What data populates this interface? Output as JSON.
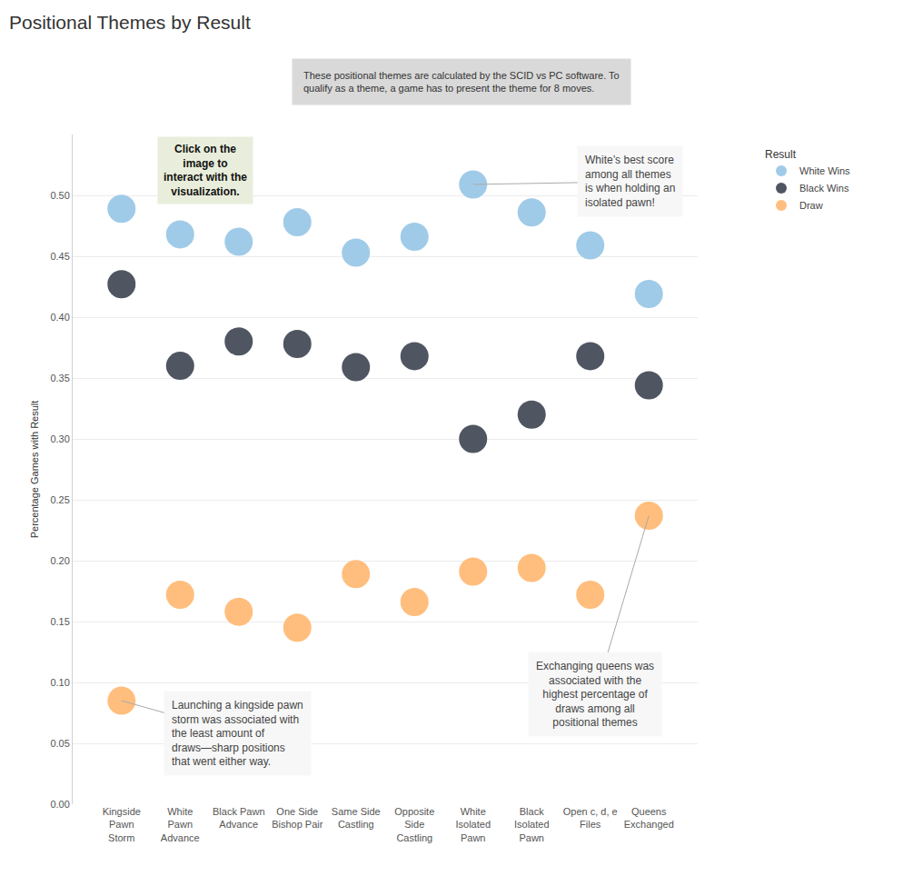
{
  "chart_data": {
    "type": "scatter",
    "title": "Positional Themes by Result",
    "subtitle": "These positional themes are calculated by the SCID vs PC software. To\nqualify as a theme, a game has to present the theme for 8 moves.",
    "ylabel": "Percentage Games with Result",
    "categories": [
      "Kingside\nPawn\nStorm",
      "White\nPawn\nAdvance",
      "Black Pawn\nAdvance",
      "One Side\nBishop Pair",
      "Same Side\nCastling",
      "Opposite\nSide\nCastling",
      "White\nIsolated\nPawn",
      "Black\nIsolated\nPawn",
      "Open c, d, e\nFiles",
      "Queens\nExchanged"
    ],
    "series": [
      {
        "name": "White Wins",
        "color": "#a0cbe8",
        "values": [
          0.489,
          0.468,
          0.462,
          0.478,
          0.453,
          0.466,
          0.509,
          0.486,
          0.459,
          0.419
        ]
      },
      {
        "name": "Black Wins",
        "color": "#4f5662",
        "values": [
          0.427,
          0.36,
          0.38,
          0.378,
          0.359,
          0.368,
          0.3,
          0.32,
          0.368,
          0.344
        ]
      },
      {
        "name": "Draw",
        "color": "#ffbe7d",
        "values": [
          0.085,
          0.172,
          0.158,
          0.145,
          0.189,
          0.166,
          0.191,
          0.194,
          0.172,
          0.237
        ]
      }
    ],
    "ylim": [
      0,
      0.55
    ],
    "yticks": [
      {
        "value": 0,
        "label": "0.00"
      },
      0.05,
      {
        "value": 0.1,
        "label": "0.10"
      },
      0.15,
      {
        "value": 0.2,
        "label": "0.20"
      },
      0.25,
      {
        "value": 0.3,
        "label": "0.30"
      },
      0.35,
      {
        "value": 0.4,
        "label": "0.40"
      },
      0.45,
      {
        "value": 0.5,
        "label": "0.50"
      }
    ],
    "grid": true,
    "legend": "top right",
    "legend_title": "Result",
    "marker": "circle",
    "annotations": [
      {
        "text": "Click on the\nimage to\ninteract with the\nvisualization."
      },
      {
        "text": "White’s best score\namong all themes\nis when holding an\nisolated pawn!",
        "category": "White\nIsolated\nPawn",
        "series": "White Wins"
      },
      {
        "text": "Launching a kingside pawn\nstorm was associated with\nthe least amount of\ndraws—sharp positions\nthat went either way.",
        "category": "Kingside\nPawn\nStorm",
        "series": "Draw"
      },
      {
        "text": "Exchanging queens was\nassociated with the\nhighest percentage of\ndraws among all\npositional themes",
        "category": "Queens\nExchanged",
        "series": "Draw"
      }
    ]
  }
}
